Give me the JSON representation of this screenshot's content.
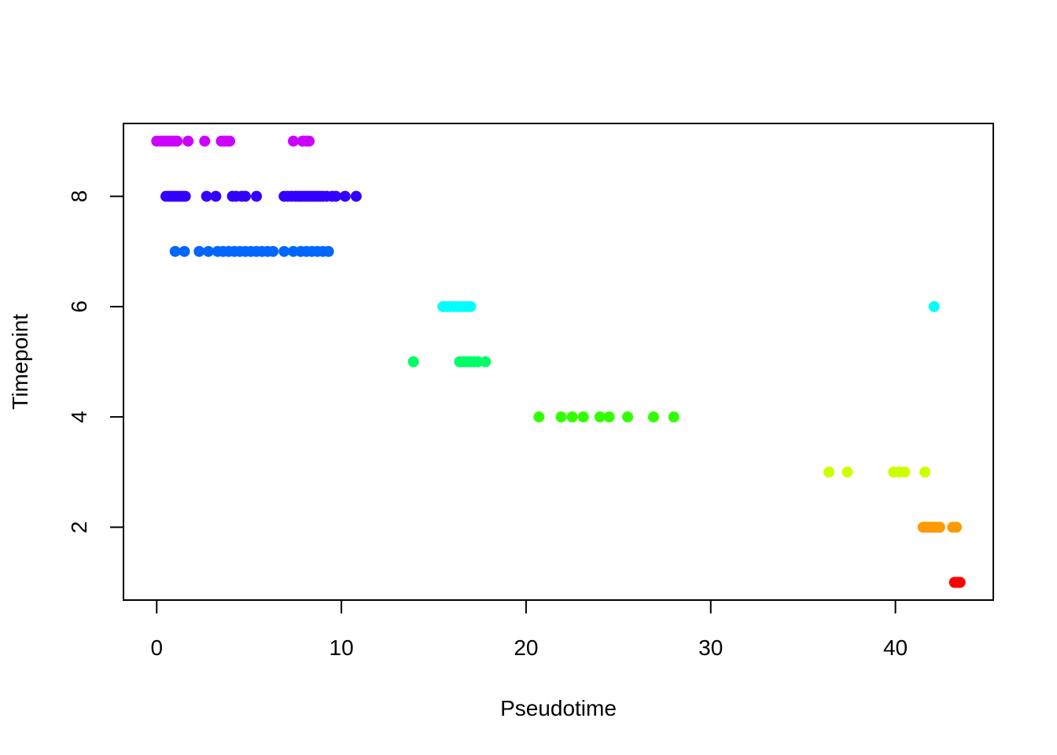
{
  "chart_data": {
    "type": "scatter",
    "title": "",
    "xlabel": "Pseudotime",
    "ylabel": "Timepoint",
    "xlim": [
      -1.8,
      45.3
    ],
    "ylim": [
      0.68,
      9.32
    ],
    "x_ticks": [
      0,
      10,
      20,
      30,
      40
    ],
    "y_ticks": [
      2,
      4,
      6,
      8
    ],
    "x_tick_labels": [
      "0",
      "10",
      "20",
      "30",
      "40"
    ],
    "y_tick_labels": [
      "2",
      "4",
      "6",
      "8"
    ],
    "grid": false,
    "legend": "none",
    "series": [
      {
        "y": 9,
        "color": "#CC00FF",
        "x": [
          0.0,
          0.2,
          0.35,
          0.5,
          0.65,
          0.8,
          0.95,
          1.1,
          1.7,
          2.6,
          3.5,
          3.65,
          3.8,
          3.95,
          7.4,
          7.9,
          8.1,
          8.25
        ]
      },
      {
        "y": 8,
        "color": "#3300FF",
        "x": [
          0.5,
          0.65,
          0.8,
          0.95,
          1.1,
          1.25,
          1.4,
          1.55,
          2.7,
          3.2,
          4.1,
          4.3,
          4.6,
          4.8,
          5.4,
          6.9,
          7.1,
          7.3,
          7.5,
          7.65,
          7.8,
          7.95,
          8.1,
          8.25,
          8.4,
          8.55,
          8.7,
          8.85,
          9.0,
          9.2,
          9.5,
          9.7,
          10.2,
          10.8
        ]
      },
      {
        "y": 7,
        "color": "#0066FF",
        "x": [
          1.0,
          1.5,
          2.3,
          2.8,
          3.3,
          3.6,
          3.9,
          4.2,
          4.5,
          4.8,
          5.1,
          5.4,
          5.7,
          6.0,
          6.3,
          6.9,
          7.4,
          7.8,
          8.1,
          8.4,
          8.7,
          9.0,
          9.3
        ]
      },
      {
        "y": 6,
        "color": "#00FFFF",
        "x": [
          15.5,
          15.7,
          15.9,
          16.1,
          16.3,
          16.5,
          16.7,
          16.9,
          17.0,
          42.1
        ]
      },
      {
        "y": 5,
        "color": "#00FF66",
        "x": [
          13.9,
          16.4,
          16.6,
          16.8,
          17.0,
          17.2,
          17.4,
          17.8
        ]
      },
      {
        "y": 4,
        "color": "#33FF00",
        "x": [
          20.7,
          21.9,
          22.5,
          23.1,
          24.0,
          24.5,
          25.5,
          26.9,
          28.0
        ]
      },
      {
        "y": 3,
        "color": "#CCFF00",
        "x": [
          36.4,
          37.4,
          39.9,
          40.2,
          40.5,
          41.6
        ]
      },
      {
        "y": 2,
        "color": "#FF9900",
        "x": [
          41.5,
          41.65,
          41.8,
          41.95,
          42.1,
          42.25,
          42.4,
          43.1,
          43.3
        ]
      },
      {
        "y": 1,
        "color": "#FF0000",
        "x": [
          43.2,
          43.3,
          43.4,
          43.5
        ]
      }
    ]
  }
}
